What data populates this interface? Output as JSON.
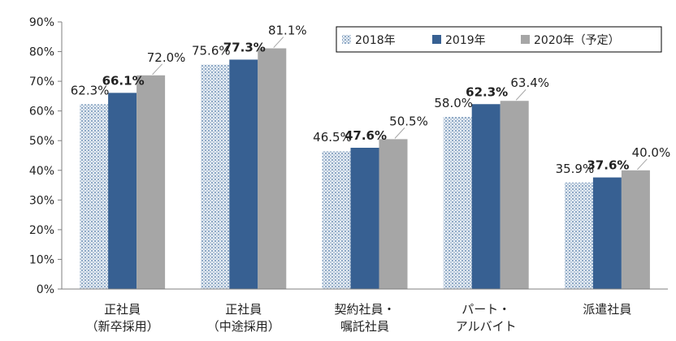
{
  "chart_data": {
    "type": "bar",
    "categories": [
      [
        "正社員",
        "（新卒採用）"
      ],
      [
        "正社員",
        "（中途採用）"
      ],
      [
        "契約社員・",
        "嘱託社員"
      ],
      [
        "パート・",
        "アルバイト"
      ],
      [
        "派遣社員"
      ]
    ],
    "series": [
      {
        "name": "2018年",
        "values": [
          62.3,
          75.6,
          46.5,
          58.0,
          35.9
        ],
        "color": "#b7c8da",
        "pattern": "dotted",
        "bold_labels": false
      },
      {
        "name": "2019年",
        "values": [
          66.1,
          77.3,
          47.6,
          62.3,
          37.6
        ],
        "color": "#376092",
        "pattern": "solid",
        "bold_labels": true
      },
      {
        "name": "2020年（予定）",
        "values": [
          72.0,
          81.1,
          50.5,
          63.4,
          40.0
        ],
        "color": "#a6a6a6",
        "pattern": "solid",
        "bold_labels": false
      }
    ],
    "data_labels": [
      [
        "62.3%",
        "75.6%",
        "46.5%",
        "58.0%",
        "35.9%"
      ],
      [
        "66.1%",
        "77.3%",
        "47.6%",
        "62.3%",
        "37.6%"
      ],
      [
        "72.0%",
        "81.1%",
        "50.5%",
        "63.4%",
        "40.0%"
      ]
    ],
    "yticks": [
      "0%",
      "10%",
      "20%",
      "30%",
      "40%",
      "50%",
      "60%",
      "70%",
      "80%",
      "90%"
    ],
    "ylim": [
      0,
      90
    ],
    "grid": false,
    "legend_position": "top-right"
  }
}
